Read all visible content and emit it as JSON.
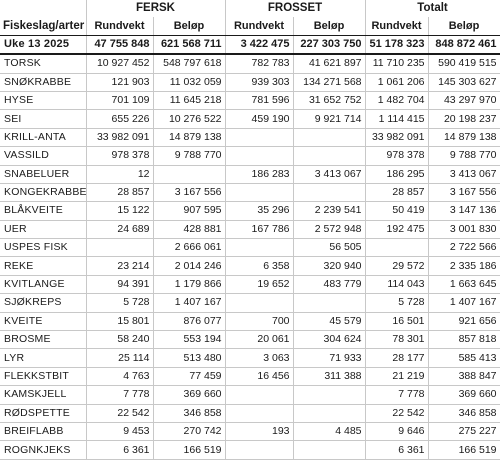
{
  "header": {
    "col_label_line1": "Fiskeslag/arter",
    "groups": [
      "FERSK",
      "FROSSET",
      "Totalt"
    ],
    "subheaders": [
      "Rundvekt",
      "Beløp",
      "Rundvekt",
      "Beløp",
      "Rundvekt",
      "Beløp"
    ]
  },
  "totals": {
    "label": "Uke 13 2025",
    "values": [
      "47 755 848",
      "621 568 711",
      "3 422 475",
      "227 303 750",
      "51 178 323",
      "848 872 461"
    ]
  },
  "rows": [
    {
      "name": "TORSK",
      "values": [
        "10 927 452",
        "548 797 618",
        "782 783",
        "41 621 897",
        "11 710 235",
        "590 419 515"
      ]
    },
    {
      "name": "SNØKRABBE",
      "values": [
        "121 903",
        "11 032 059",
        "939 303",
        "134 271 568",
        "1 061 206",
        "145 303 627"
      ]
    },
    {
      "name": "HYSE",
      "values": [
        "701 109",
        "11 645 218",
        "781 596",
        "31 652 752",
        "1 482 704",
        "43 297 970"
      ]
    },
    {
      "name": "SEI",
      "values": [
        "655 226",
        "10 276 522",
        "459 190",
        "9 921 714",
        "1 114 415",
        "20 198 237"
      ]
    },
    {
      "name": "KRILL-ANTA",
      "values": [
        "33 982 091",
        "14 879 138",
        "",
        "",
        "33 982 091",
        "14 879 138"
      ]
    },
    {
      "name": "VASSILD",
      "values": [
        "978 378",
        "9 788 770",
        "",
        "",
        "978 378",
        "9 788 770"
      ]
    },
    {
      "name": "SNABELUER",
      "values": [
        "12",
        "",
        "186 283",
        "3 413 067",
        "186 295",
        "3 413 067"
      ]
    },
    {
      "name": "KONGEKRABBE",
      "values": [
        "28 857",
        "3 167 556",
        "",
        "",
        "28 857",
        "3 167 556"
      ]
    },
    {
      "name": "BLÅKVEITE",
      "values": [
        "15 122",
        "907 595",
        "35 296",
        "2 239 541",
        "50 419",
        "3 147 136"
      ]
    },
    {
      "name": "UER",
      "values": [
        "24 689",
        "428 881",
        "167 786",
        "2 572 948",
        "192 475",
        "3 001 830"
      ]
    },
    {
      "name": "USPES FISK",
      "values": [
        "",
        "2 666 061",
        "",
        "56 505",
        "",
        "2 722 566"
      ]
    },
    {
      "name": "REKE",
      "values": [
        "23 214",
        "2 014 246",
        "6 358",
        "320 940",
        "29 572",
        "2 335 186"
      ]
    },
    {
      "name": "KVITLANGE",
      "values": [
        "94 391",
        "1 179 866",
        "19 652",
        "483 779",
        "114 043",
        "1 663 645"
      ]
    },
    {
      "name": "SJØKREPS",
      "values": [
        "5 728",
        "1 407 167",
        "",
        "",
        "5 728",
        "1 407 167"
      ]
    },
    {
      "name": "KVEITE",
      "values": [
        "15 801",
        "876 077",
        "700",
        "45 579",
        "16 501",
        "921 656"
      ]
    },
    {
      "name": "BROSME",
      "values": [
        "58 240",
        "553 194",
        "20 061",
        "304 624",
        "78 301",
        "857 818"
      ]
    },
    {
      "name": "LYR",
      "values": [
        "25 114",
        "513 480",
        "3 063",
        "71 933",
        "28 177",
        "585 413"
      ]
    },
    {
      "name": "FLEKKSTBIT",
      "values": [
        "4 763",
        "77 459",
        "16 456",
        "311 388",
        "21 219",
        "388 847"
      ]
    },
    {
      "name": "KAMSKJELL",
      "values": [
        "7 778",
        "369 660",
        "",
        "",
        "7 778",
        "369 660"
      ]
    },
    {
      "name": "RØDSPETTE",
      "values": [
        "22 542",
        "346 858",
        "",
        "",
        "22 542",
        "346 858"
      ]
    },
    {
      "name": "BREIFLABB",
      "values": [
        "9 453",
        "270 742",
        "193",
        "4 485",
        "9 646",
        "275 227"
      ]
    },
    {
      "name": "ROGNKJEKS",
      "values": [
        "6 361",
        "166 519",
        "",
        "",
        "6 361",
        "166 519"
      ]
    }
  ]
}
